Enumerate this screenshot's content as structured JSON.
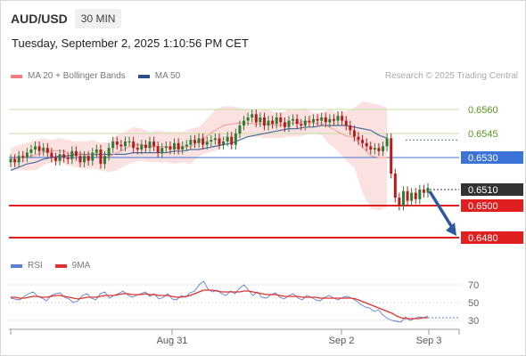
{
  "header": {
    "symbol": "AUD/USD",
    "timeframe": "30 MIN"
  },
  "timestamp": "Tuesday, September 2, 2025 1:10:56 PM CET",
  "legend": [
    {
      "label": "MA 20 + Bollinger Bands",
      "color": "#f08080"
    },
    {
      "label": "MA 50",
      "color": "#2c4f8c"
    }
  ],
  "copyright": "Research © 2025 Trading Central",
  "colors": {
    "up": "#2e7d32",
    "down": "#b71c1c",
    "bollinger_fill": "#fcdede",
    "ma20": "#f29a9a",
    "ma50": "#4b6e9e",
    "green_level": "#c5dea8",
    "blue_level": "#3b73d6",
    "red_level": "#e02020",
    "current_level": "#333333",
    "arrow": "#2c5aa0",
    "rsi": "#5b7fd1",
    "rsi_ma": "#e03030"
  },
  "chart_data": [
    {
      "type": "candlestick",
      "title": "AUD/USD 30 MIN",
      "ylim": [
        0.647,
        0.657
      ],
      "x": [
        "Aug 31",
        "Sep 2",
        "Sep 3"
      ],
      "x_tick_labels": [
        "Aug 31",
        "Sep 2",
        "Sep 3"
      ],
      "price_levels": [
        {
          "value": 0.656,
          "label": "0.6560",
          "kind": "resistance"
        },
        {
          "value": 0.6545,
          "label": "0.6545",
          "kind": "resistance"
        },
        {
          "value": 0.653,
          "label": "0.6530",
          "kind": "pivot"
        },
        {
          "value": 0.651,
          "label": "0.6510",
          "kind": "current"
        },
        {
          "value": 0.65,
          "label": "0.6500",
          "kind": "support"
        },
        {
          "value": 0.648,
          "label": "0.6480",
          "kind": "support"
        }
      ],
      "close_series": [
        0.6529,
        0.6527,
        0.6531,
        0.653,
        0.6533,
        0.6535,
        0.6537,
        0.6534,
        0.6536,
        0.6533,
        0.653,
        0.6528,
        0.6532,
        0.653,
        0.6529,
        0.6534,
        0.6531,
        0.6527,
        0.6531,
        0.6528,
        0.6533,
        0.6535,
        0.6526,
        0.6531,
        0.6536,
        0.654,
        0.6538,
        0.6537,
        0.654,
        0.654,
        0.6536,
        0.6535,
        0.6538,
        0.6536,
        0.654,
        0.6537,
        0.6533,
        0.6536,
        0.6537,
        0.6535,
        0.6539,
        0.6535,
        0.6537,
        0.6538,
        0.6541,
        0.6539,
        0.6542,
        0.6538,
        0.654,
        0.6541,
        0.6542,
        0.6538,
        0.654,
        0.6543,
        0.6538,
        0.6545,
        0.655,
        0.6553,
        0.6555,
        0.6557,
        0.6552,
        0.6555,
        0.655,
        0.6553,
        0.6551,
        0.6555,
        0.6552,
        0.6549,
        0.6553,
        0.6554,
        0.6551,
        0.655,
        0.6553,
        0.6552,
        0.6554,
        0.6553,
        0.6555,
        0.6552,
        0.6554,
        0.6553,
        0.6556,
        0.6553,
        0.655,
        0.6547,
        0.6543,
        0.6541,
        0.6539,
        0.6537,
        0.6535,
        0.6536,
        0.6534,
        0.6537,
        0.6542,
        0.652,
        0.6505,
        0.65,
        0.6509,
        0.6503,
        0.6508,
        0.6504,
        0.651,
        0.6508,
        0.6511
      ],
      "ma50_series": [
        0.6522,
        0.6524,
        0.6526,
        0.6527,
        0.6529,
        0.653,
        0.6531,
        0.6531,
        0.6532,
        0.6532,
        0.6532,
        0.6532,
        0.6532,
        0.6532,
        0.6532,
        0.6533,
        0.6533,
        0.6533,
        0.6533,
        0.6533,
        0.6534,
        0.6534,
        0.6535,
        0.6535,
        0.6536,
        0.6537,
        0.6538,
        0.6539,
        0.6541,
        0.6543,
        0.6544,
        0.6545,
        0.6546,
        0.6547,
        0.6548,
        0.6548,
        0.6549,
        0.6549,
        0.655,
        0.655,
        0.655,
        0.655,
        0.6549,
        0.6548,
        0.6547,
        0.6544,
        0.6542
      ],
      "ma50_x_index": [
        0,
        2,
        4,
        6,
        8,
        10,
        12,
        14,
        16,
        18,
        20,
        22,
        24,
        26,
        28,
        30,
        32,
        34,
        36,
        38,
        40,
        42,
        44,
        46,
        48,
        50,
        52,
        54,
        56,
        58,
        60,
        62,
        64,
        66,
        68,
        70,
        72,
        74,
        76,
        78,
        80,
        82,
        84,
        86,
        88,
        90,
        92
      ],
      "bollinger": {
        "upper": [
          0.6536,
          0.6538,
          0.6539,
          0.6541,
          0.6542,
          0.6541,
          0.6542,
          0.6541,
          0.654,
          0.654,
          0.6541,
          0.6539,
          0.654,
          0.6544,
          0.6546,
          0.6549,
          0.6548,
          0.6546,
          0.6547,
          0.6546,
          0.6546,
          0.6546,
          0.6548,
          0.6549,
          0.6554,
          0.656,
          0.6562,
          0.6562,
          0.6561,
          0.656,
          0.6559,
          0.656,
          0.6559,
          0.6558,
          0.656,
          0.656,
          0.6561,
          0.6558,
          0.6558,
          0.656,
          0.6558,
          0.6559,
          0.6561,
          0.6565,
          0.6564,
          0.6563,
          0.6561
        ],
        "lower": [
          0.6522,
          0.6522,
          0.6522,
          0.6522,
          0.6525,
          0.6527,
          0.6527,
          0.6525,
          0.6524,
          0.6523,
          0.6523,
          0.6522,
          0.6521,
          0.6522,
          0.6525,
          0.6527,
          0.6528,
          0.6527,
          0.6527,
          0.6527,
          0.6526,
          0.6527,
          0.6526,
          0.6531,
          0.6533,
          0.6534,
          0.6538,
          0.654,
          0.6542,
          0.6543,
          0.6543,
          0.6542,
          0.6542,
          0.6542,
          0.6543,
          0.6543,
          0.6544,
          0.6545,
          0.6544,
          0.6538,
          0.6534,
          0.6528,
          0.6524,
          0.6508,
          0.6498,
          0.6497,
          0.6499
        ],
        "x_index": [
          0,
          2,
          4,
          6,
          8,
          10,
          12,
          14,
          16,
          18,
          20,
          22,
          24,
          26,
          28,
          30,
          32,
          34,
          36,
          38,
          40,
          42,
          44,
          46,
          48,
          50,
          52,
          54,
          56,
          58,
          60,
          62,
          64,
          66,
          68,
          70,
          72,
          74,
          76,
          78,
          80,
          82,
          84,
          86,
          88,
          90,
          92
        ]
      },
      "forecast": {
        "from": 0.651,
        "to": 0.648
      }
    },
    {
      "type": "line",
      "title": "RSI",
      "ylim": [
        20,
        80
      ],
      "yticks": [
        70,
        50,
        30
      ],
      "series": [
        {
          "name": "RSI",
          "values": [
            55,
            54,
            53,
            57,
            60,
            62,
            57,
            55,
            52,
            58,
            60,
            61,
            56,
            54,
            50,
            52,
            58,
            60,
            55,
            53,
            60,
            62,
            55,
            58,
            60,
            63,
            59,
            56,
            58,
            60,
            62,
            57,
            60,
            54,
            56,
            60,
            54,
            53,
            58,
            56,
            61,
            63,
            70,
            74,
            65,
            62,
            64,
            60,
            58,
            63,
            60,
            66,
            70,
            64,
            58,
            62,
            56,
            55,
            59,
            61,
            56,
            54,
            58,
            60,
            55,
            53,
            58,
            56,
            53,
            52,
            56,
            58,
            55,
            53,
            56,
            57,
            55,
            52,
            48,
            45,
            44,
            40,
            42,
            36,
            32,
            30,
            29,
            28,
            34,
            30,
            32,
            34,
            33,
            35
          ]
        },
        {
          "name": "9MA",
          "values": [
            56,
            56,
            55,
            55,
            56,
            57,
            57,
            56,
            56,
            57,
            58,
            58,
            57,
            56,
            55,
            54,
            55,
            56,
            56,
            56,
            57,
            58,
            58,
            58,
            59,
            60,
            60,
            59,
            59,
            59,
            60,
            59,
            59,
            58,
            58,
            58,
            57,
            56,
            56,
            57,
            58,
            60,
            62,
            64,
            64,
            64,
            63,
            62,
            62,
            62,
            62,
            62,
            63,
            63,
            62,
            61,
            60,
            59,
            59,
            59,
            58,
            57,
            57,
            57,
            57,
            56,
            56,
            56,
            56,
            55,
            55,
            55,
            55,
            55,
            55,
            55,
            55,
            54,
            52,
            50,
            48,
            46,
            44,
            42,
            40,
            38,
            35,
            33,
            32,
            32,
            32,
            32,
            33,
            33
          ]
        }
      ]
    }
  ]
}
